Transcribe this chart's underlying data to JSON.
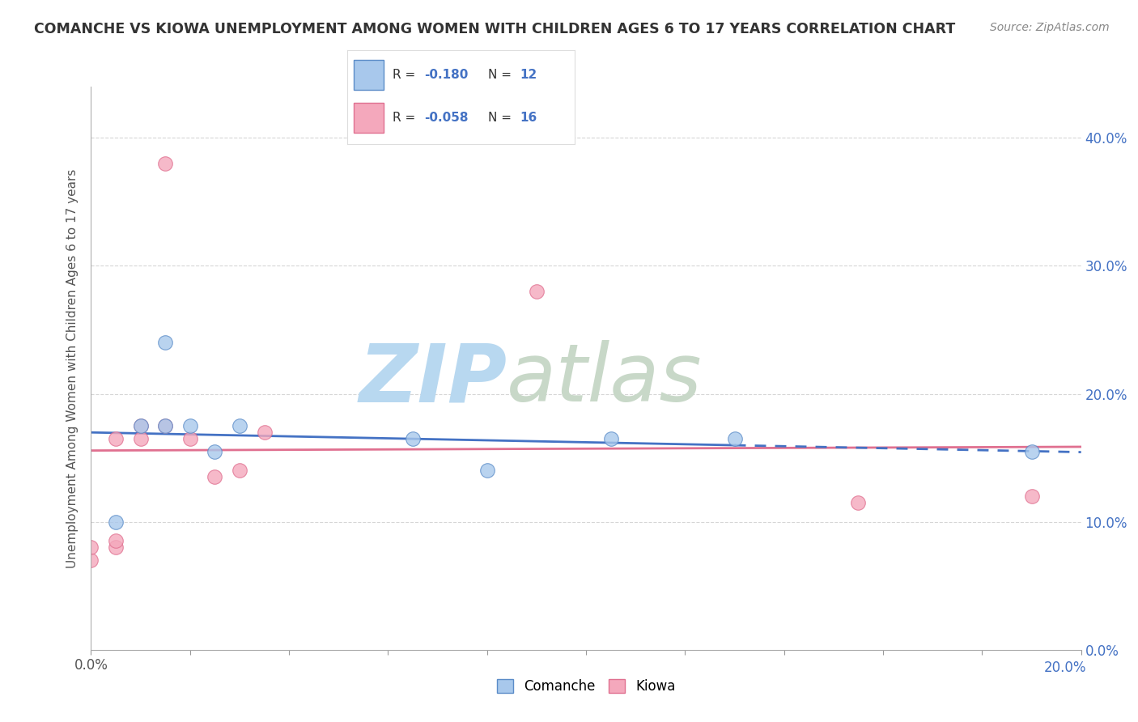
{
  "title": "COMANCHE VS KIOWA UNEMPLOYMENT AMONG WOMEN WITH CHILDREN AGES 6 TO 17 YEARS CORRELATION CHART",
  "source": "Source: ZipAtlas.com",
  "ylabel": "Unemployment Among Women with Children Ages 6 to 17 years",
  "xlim": [
    0.0,
    0.2
  ],
  "ylim": [
    0.0,
    0.44
  ],
  "xticks": [
    0.0,
    0.02,
    0.04,
    0.06,
    0.08,
    0.1,
    0.12,
    0.14,
    0.16,
    0.18,
    0.2
  ],
  "yticks": [
    0.0,
    0.1,
    0.2,
    0.3,
    0.4
  ],
  "comanche_color": "#A8C8EC",
  "kiowa_color": "#F4A8BC",
  "comanche_edge_color": "#5B8CC8",
  "kiowa_edge_color": "#E07090",
  "comanche_line_color": "#4472C4",
  "kiowa_line_color": "#E07090",
  "comanche_R": -0.18,
  "comanche_N": 12,
  "kiowa_R": -0.058,
  "kiowa_N": 16,
  "comanche_scatter_x": [
    0.005,
    0.01,
    0.015,
    0.015,
    0.02,
    0.025,
    0.03,
    0.065,
    0.08,
    0.105,
    0.13,
    0.19
  ],
  "comanche_scatter_y": [
    0.1,
    0.175,
    0.175,
    0.24,
    0.175,
    0.155,
    0.175,
    0.165,
    0.14,
    0.165,
    0.165,
    0.155
  ],
  "kiowa_scatter_x": [
    0.0,
    0.0,
    0.005,
    0.005,
    0.005,
    0.01,
    0.01,
    0.015,
    0.015,
    0.02,
    0.025,
    0.03,
    0.035,
    0.09,
    0.155,
    0.19
  ],
  "kiowa_scatter_y": [
    0.07,
    0.08,
    0.08,
    0.085,
    0.165,
    0.165,
    0.175,
    0.175,
    0.38,
    0.165,
    0.135,
    0.14,
    0.17,
    0.28,
    0.115,
    0.12
  ],
  "background_color": "#FFFFFF",
  "grid_color": "#CCCCCC",
  "watermark_zip_color": "#B8D8F0",
  "watermark_atlas_color": "#C8D8C8",
  "comanche_line_solid_end": 0.13,
  "kiowa_line_solid_end": 0.2
}
